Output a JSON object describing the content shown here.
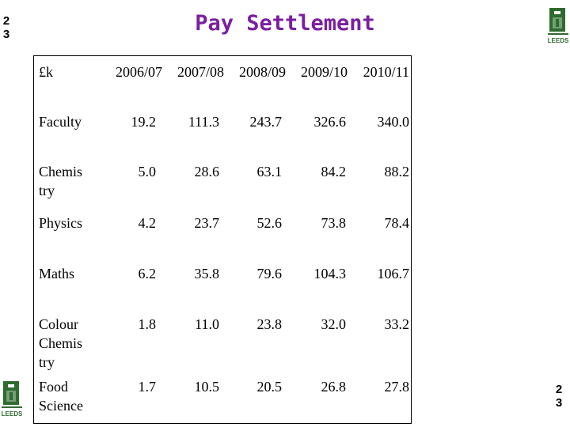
{
  "slide_number": [
    "2",
    "3"
  ],
  "title": "Pay Settlement",
  "logo": {
    "text": "LEEDS",
    "color": "#2f6b2f"
  },
  "table": {
    "corner_label": "£k",
    "columns": [
      "2006/07",
      "2007/08",
      "2008/09",
      "2009/10",
      "2010/11"
    ],
    "rows": [
      {
        "label": [
          "Faculty"
        ],
        "values": [
          "19.2",
          "111.3",
          "243.7",
          "326.6",
          "340.0"
        ]
      },
      {
        "label": [
          "Chemis",
          "try"
        ],
        "values": [
          "5.0",
          "28.6",
          "63.1",
          "84.2",
          "88.2"
        ]
      },
      {
        "label": [
          "Physics"
        ],
        "values": [
          "4.2",
          "23.7",
          "52.6",
          "73.8",
          "78.4"
        ]
      },
      {
        "label": [
          "Maths"
        ],
        "values": [
          "6.2",
          "35.8",
          "79.6",
          "104.3",
          "106.7"
        ]
      },
      {
        "label": [
          "Colour",
          "Chemis",
          "try"
        ],
        "values": [
          "1.8",
          "11.0",
          "23.8",
          "32.0",
          "33.2"
        ]
      },
      {
        "label": [
          "Food",
          "Science"
        ],
        "values": [
          "1.7",
          "10.5",
          "20.5",
          "26.8",
          "27.8"
        ]
      }
    ]
  },
  "colors": {
    "title": "#7a1fa0",
    "text": "#000000",
    "background": "#ffffff"
  }
}
